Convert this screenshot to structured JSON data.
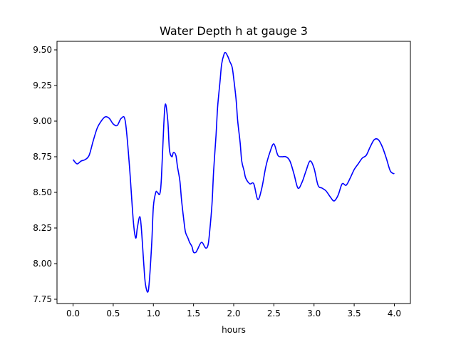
{
  "chart_data": {
    "type": "line",
    "title": "Water Depth h at gauge 3",
    "xlabel": "hours",
    "ylabel": "",
    "xlim": [
      -0.2,
      4.2
    ],
    "ylim": [
      7.72,
      9.56
    ],
    "xticks": [
      0.0,
      0.5,
      1.0,
      1.5,
      2.0,
      2.5,
      3.0,
      3.5,
      4.0
    ],
    "xtick_labels": [
      "0.0",
      "0.5",
      "1.0",
      "1.5",
      "2.0",
      "2.5",
      "3.0",
      "3.5",
      "4.0"
    ],
    "yticks": [
      7.75,
      8.0,
      8.25,
      8.5,
      8.75,
      9.0,
      9.25,
      9.5
    ],
    "ytick_labels": [
      "7.75",
      "8.00",
      "8.25",
      "8.50",
      "8.75",
      "9.00",
      "9.25",
      "9.50"
    ],
    "grid": false,
    "legend": "none",
    "series": [
      {
        "color": "#0000ff",
        "x": [
          0.0,
          0.05,
          0.1,
          0.15,
          0.2,
          0.25,
          0.3,
          0.35,
          0.4,
          0.45,
          0.5,
          0.55,
          0.6,
          0.65,
          0.7,
          0.75,
          0.78,
          0.8,
          0.83,
          0.85,
          0.88,
          0.9,
          0.93,
          0.95,
          0.98,
          1.0,
          1.03,
          1.05,
          1.08,
          1.1,
          1.13,
          1.15,
          1.18,
          1.2,
          1.23,
          1.25,
          1.28,
          1.3,
          1.33,
          1.35,
          1.38,
          1.4,
          1.43,
          1.45,
          1.48,
          1.5,
          1.53,
          1.55,
          1.6,
          1.65,
          1.68,
          1.7,
          1.73,
          1.75,
          1.78,
          1.8,
          1.83,
          1.85,
          1.88,
          1.9,
          1.93,
          1.95,
          1.98,
          2.0,
          2.03,
          2.05,
          2.08,
          2.1,
          2.13,
          2.15,
          2.2,
          2.25,
          2.3,
          2.35,
          2.4,
          2.45,
          2.5,
          2.55,
          2.6,
          2.65,
          2.7,
          2.75,
          2.8,
          2.85,
          2.9,
          2.95,
          3.0,
          3.05,
          3.1,
          3.15,
          3.2,
          3.25,
          3.3,
          3.35,
          3.4,
          3.45,
          3.5,
          3.55,
          3.6,
          3.65,
          3.7,
          3.75,
          3.8,
          3.85,
          3.9,
          3.95,
          4.0
        ],
        "y": [
          8.73,
          8.7,
          8.72,
          8.73,
          8.76,
          8.86,
          8.95,
          9.0,
          9.03,
          9.02,
          8.98,
          8.97,
          9.02,
          9.0,
          8.7,
          8.3,
          8.18,
          8.25,
          8.33,
          8.25,
          8.0,
          7.86,
          7.8,
          7.88,
          8.15,
          8.4,
          8.5,
          8.5,
          8.49,
          8.6,
          8.98,
          9.12,
          9.0,
          8.8,
          8.75,
          8.78,
          8.76,
          8.68,
          8.58,
          8.45,
          8.3,
          8.22,
          8.18,
          8.15,
          8.12,
          8.08,
          8.08,
          8.1,
          8.15,
          8.11,
          8.13,
          8.22,
          8.42,
          8.65,
          8.9,
          9.1,
          9.28,
          9.4,
          9.47,
          9.48,
          9.45,
          9.42,
          9.38,
          9.3,
          9.15,
          9.0,
          8.85,
          8.72,
          8.65,
          8.6,
          8.56,
          8.56,
          8.45,
          8.53,
          8.68,
          8.78,
          8.84,
          8.76,
          8.75,
          8.75,
          8.72,
          8.63,
          8.53,
          8.57,
          8.65,
          8.72,
          8.67,
          8.55,
          8.53,
          8.51,
          8.47,
          8.44,
          8.48,
          8.56,
          8.55,
          8.6,
          8.66,
          8.7,
          8.74,
          8.76,
          8.82,
          8.87,
          8.87,
          8.82,
          8.74,
          8.65,
          8.63
        ]
      }
    ]
  }
}
